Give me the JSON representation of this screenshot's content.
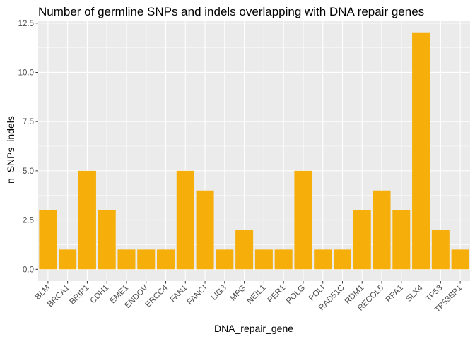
{
  "chart_data": {
    "type": "bar",
    "title": "Number of germline SNPs and indels overlapping with DNA repair genes",
    "xlabel": "DNA_repair_gene",
    "ylabel": "n_SNPs_indels",
    "categories": [
      "BLM",
      "BRCA1",
      "BRIP1",
      "CDH1",
      "EME1",
      "ENDOV",
      "ERCC4",
      "FAN1",
      "FANCI",
      "LIG3",
      "MPG",
      "NEIL1",
      "PER1",
      "POLG",
      "POLI",
      "RAD51C",
      "RDM1",
      "RECQL5",
      "RPA1",
      "SLX4",
      "TP53",
      "TP53BP1"
    ],
    "values": [
      3,
      1,
      5,
      3,
      1,
      1,
      1,
      5,
      4,
      1,
      2,
      1,
      1,
      5,
      1,
      1,
      3,
      4,
      3,
      12,
      2,
      1
    ],
    "ylim": [
      -0.6,
      12.6
    ],
    "yticks": [
      0.0,
      2.5,
      5.0,
      7.5,
      10.0,
      12.5
    ],
    "ytick_labels": [
      "0.0",
      "2.5",
      "5.0",
      "7.5",
      "10.0",
      "12.5"
    ],
    "grid": true,
    "colors": {
      "bar": "#F5AE0A",
      "panel": "#EBEBEB",
      "grid_major": "#FFFFFF",
      "tick_text": "#4D4D4D",
      "tick_mark": "#333333"
    }
  }
}
